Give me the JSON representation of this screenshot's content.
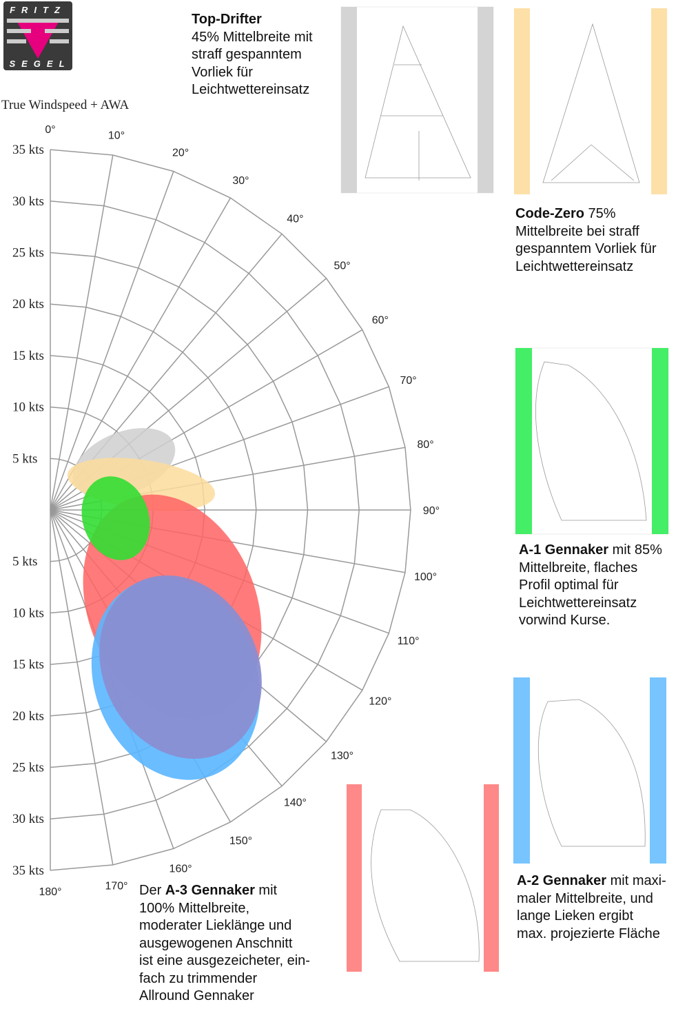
{
  "logo": {
    "top": "FRITZ",
    "bottom": "SEGEL"
  },
  "polar": {
    "title": "True Windspeed + AWA",
    "angle_labels": [
      "0°",
      "10°",
      "20°",
      "30°",
      "40°",
      "50°",
      "60°",
      "70°",
      "80°",
      "90°",
      "100°",
      "110°",
      "120°",
      "130°",
      "140°",
      "150°",
      "160°",
      "170°",
      "180°"
    ],
    "speed_labels_upper": [
      "5 kts",
      "10 kts",
      "15 kts",
      "20 kts",
      "25 kts",
      "30 kts",
      "35 kts"
    ],
    "speed_labels_lower": [
      "5 kts",
      "10 kts",
      "15 kts",
      "20 kts",
      "25 kts",
      "30 kts",
      "35 kts"
    ]
  },
  "descriptions": {
    "top_drifter": {
      "title": "Top-Drifter",
      "lines": [
        "45% Mittelbreite mit",
        "straff gespanntem",
        "Vorliek für",
        "Leichtwettereinsatz"
      ]
    },
    "code_zero": {
      "title": "Code-Zero",
      "rest": " 75%",
      "lines": [
        "Mittelbreite bei straff",
        "gespanntem Vorliek für",
        "Leichtwettereinsatz"
      ]
    },
    "a1": {
      "title": "A-1 Gennaker",
      "rest": " mit 85%",
      "lines": [
        "Mittelbreite, flaches",
        "Profil optimal für",
        "Leichtwettereinsatz",
        "vorwind Kurse."
      ]
    },
    "a2": {
      "title": "A-2 Gennaker",
      "rest": " mit maxi-",
      "lines": [
        "maler Mittelbreite, und",
        "lange Lieken ergibt",
        "max. projezierte Fläche"
      ]
    },
    "a3": {
      "lead": "Der ",
      "title": "A-3 Gennaker",
      "rest": " mit",
      "lines": [
        "100% Mittelbreite,",
        "moderater Lieklänge und",
        "ausgewogenen Anschnitt",
        "ist eine ausgezeicheter, ein-",
        "fach zu trimmender",
        "Allround Gennaker"
      ]
    }
  }
}
